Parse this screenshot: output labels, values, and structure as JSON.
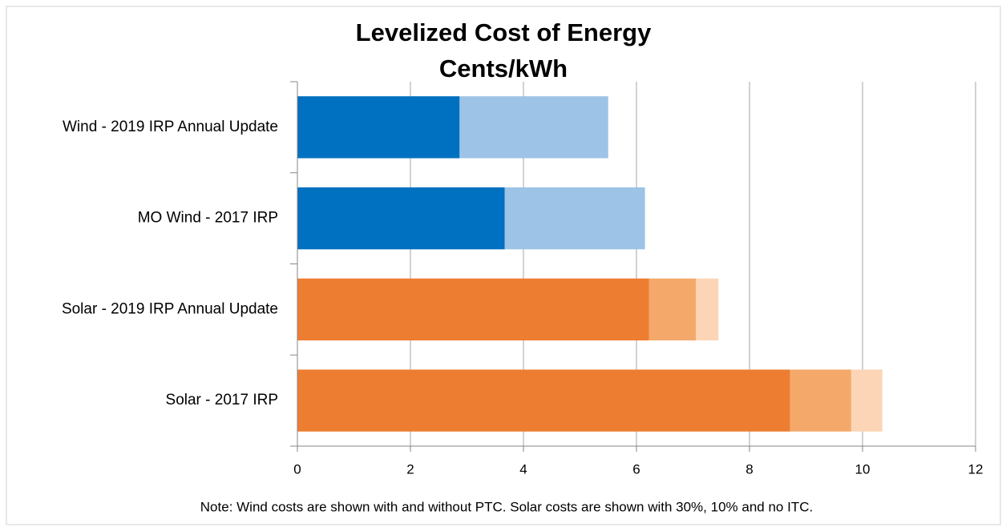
{
  "chart_data": {
    "type": "hbar_stacked",
    "title": "Levelized Cost of Energy",
    "subtitle": "Cents/kWh",
    "note": "Note:  Wind  costs are shown with and without PTC.  Solar costs are shown with 30%, 10% and no ITC.",
    "categories": [
      "Wind - 2019 IRP Annual Update",
      "MO Wind  - 2017 IRP",
      "Solar - 2019 IRP Annual Update",
      "Solar - 2017 IRP"
    ],
    "series": [
      {
        "colors": [
          "#0070c0",
          "#0070c0",
          "#ed7d31",
          "#ed7d31"
        ],
        "values": [
          2.87,
          3.67,
          6.22,
          8.72
        ]
      },
      {
        "colors": [
          "#9dc3e6",
          "#9dc3e6",
          "#f4a96a",
          "#f4a96a"
        ],
        "values": [
          2.63,
          2.48,
          0.83,
          1.08
        ]
      },
      {
        "colors": [
          "#fbd5b5",
          "#fbd5b5",
          "#fbd5b5",
          "#fbd5b5"
        ],
        "values": [
          null,
          null,
          0.4,
          0.55
        ]
      }
    ],
    "xlim": [
      0,
      12
    ],
    "xticks": [
      0,
      2,
      4,
      6,
      8,
      10,
      12
    ],
    "grid": true
  }
}
